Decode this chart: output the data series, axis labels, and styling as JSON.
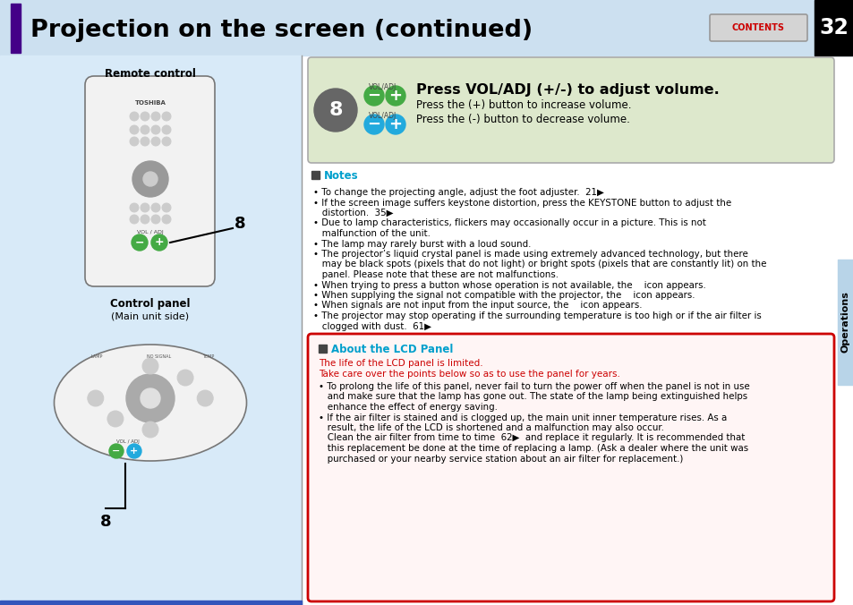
{
  "title": "Projection on the screen (continued)",
  "page_num": "32",
  "bg_header_color": "#cce0f0",
  "bg_left_color": "#d8eaf8",
  "purple_bar_color": "#440088",
  "heading_text": "Press VOL/ADJ (+/-) to adjust volume.",
  "sub_text1": "Press the (+) button to increase volume.",
  "sub_text2": "Press the (-) button to decrease volume.",
  "notes_title": "Notes",
  "note_lines": [
    "• To change the projecting angle, adjust the foot adjuster.  21▶",
    "• If the screen image suffers keystone distortion, press the KEYSTONE button to adjust the",
    "   distortion.  35▶",
    "• Due to lamp characteristics, flickers may occasionally occur in a picture. This is not",
    "   malfunction of the unit.",
    "• The lamp may rarely burst with a loud sound.",
    "• The projector’s liquid crystal panel is made using extremely advanced technology, but there",
    "   may be black spots (pixels that do not light) or bright spots (pixels that are constantly lit) on the",
    "   panel. Please note that these are not malfunctions.",
    "• When trying to press a button whose operation is not available, the    icon appears.",
    "• When supplying the signal not compatible with the projector, the    icon appears.",
    "• When signals are not input from the input source, the    icon appears.",
    "• The projector may stop operating if the surrounding temperature is too high or if the air filter is",
    "   clogged with dust.  61▶"
  ],
  "lcd_title": "About the LCD Panel",
  "lcd_red1": "The life of the LCD panel is limited.",
  "lcd_red2": "Take care over the points below so as to use the panel for years.",
  "lcd_lines": [
    "• To prolong the life of this panel, never fail to turn the power off when the panel is not in use",
    "   and make sure that the lamp has gone out. The state of the lamp being extinguished helps",
    "   enhance the effect of energy saving.",
    "• If the air filter is stained and is clogged up, the main unit inner temperature rises. As a",
    "   result, the life of the LCD is shortened and a malfunction may also occur.",
    "   Clean the air filter from time to time  62▶  and replace it regularly. It is recommended that",
    "   this replacement be done at the time of replacing a lamp. (Ask a dealer where the unit was",
    "   purchased or your nearby service station about an air filter for replacement.)"
  ],
  "remote_label": "Remote control",
  "panel_label": "Control panel",
  "panel_sub": "(Main unit side)",
  "contents_color": "#cc0000",
  "ops_tab_color": "#b8d4e8"
}
